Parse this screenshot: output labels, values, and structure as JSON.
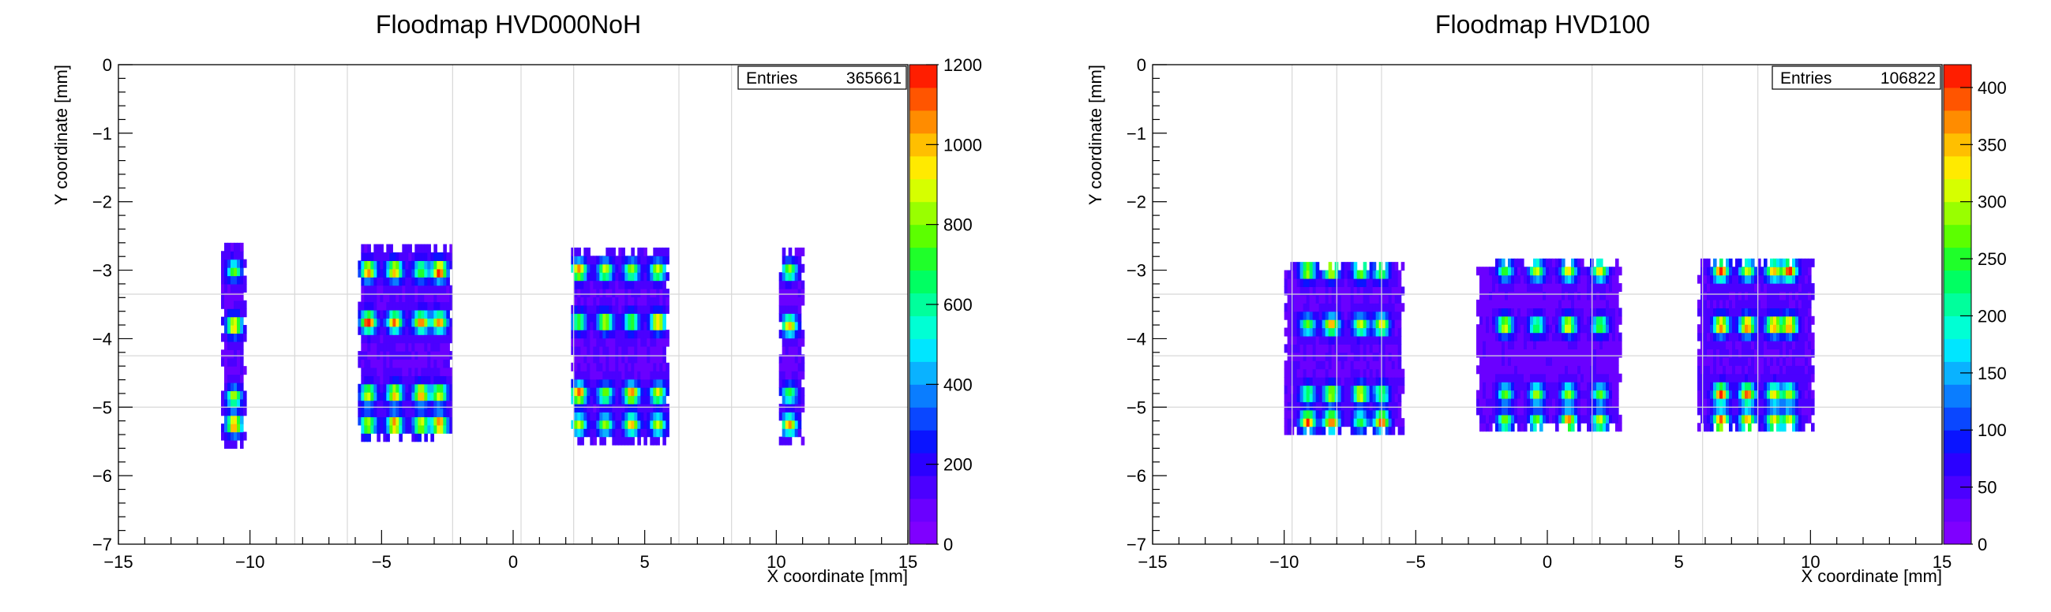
{
  "chart_data": [
    {
      "type": "heatmap",
      "title": "Floodmap HVD000NoH",
      "xlabel": "X coordinate [mm]",
      "ylabel": "Y coordinate [mm]",
      "xlim": [
        -15,
        15
      ],
      "ylim": [
        -7,
        0
      ],
      "x_ticks": [
        "−15",
        "−10",
        "−5",
        "0",
        "5",
        "10",
        "15"
      ],
      "y_ticks": [
        "0",
        "−1",
        "−2",
        "−3",
        "−4",
        "−5",
        "−6",
        "−7"
      ],
      "stats": {
        "label": "Entries",
        "value": "365661"
      },
      "zlim": [
        0,
        1200
      ],
      "z_ticks": [
        "0",
        "200",
        "400",
        "600",
        "800",
        "1000",
        "1200"
      ],
      "grid_x": [
        -8.3,
        -6.3,
        -2.3,
        0.3,
        2.3,
        6.3,
        8.3
      ],
      "grid_y": [
        -3.35,
        -4.25,
        -5.0
      ],
      "modules": [
        {
          "x": [
            -11.1,
            -10.1
          ],
          "y": [
            -5.6,
            -2.65
          ],
          "spots_x": [
            -10.6
          ],
          "spots_y": [
            -3.0,
            -3.8,
            -4.85,
            -5.25
          ],
          "peak": 1150
        },
        {
          "x": [
            -5.9,
            -2.3
          ],
          "y": [
            -5.5,
            -2.65
          ],
          "spots_x": [
            -5.5,
            -4.5,
            -3.5,
            -2.8
          ],
          "spots_y": [
            -3.0,
            -3.75,
            -4.8,
            -5.25
          ],
          "peak": 1200
        },
        {
          "x": [
            2.2,
            5.9
          ],
          "y": [
            -5.55,
            -2.65
          ],
          "spots_x": [
            2.5,
            3.5,
            4.5,
            5.5
          ],
          "spots_y": [
            -3.0,
            -3.75,
            -4.8,
            -5.25
          ],
          "peak": 1150
        },
        {
          "x": [
            10.1,
            11.1
          ],
          "y": [
            -5.55,
            -2.65
          ],
          "spots_x": [
            10.5
          ],
          "spots_y": [
            -3.0,
            -3.8,
            -4.8,
            -5.25
          ],
          "peak": 1100
        }
      ]
    },
    {
      "type": "heatmap",
      "title": "Floodmap HVD100",
      "xlabel": "X coordinate [mm]",
      "ylabel": "Y coordinate [mm]",
      "xlim": [
        -15,
        15
      ],
      "ylim": [
        -7,
        0
      ],
      "x_ticks": [
        "−15",
        "−10",
        "−5",
        "0",
        "5",
        "10",
        "15"
      ],
      "y_ticks": [
        "0",
        "−1",
        "−2",
        "−3",
        "−4",
        "−5",
        "−6",
        "−7"
      ],
      "stats": {
        "label": "Entries",
        "value": "106822"
      },
      "zlim": [
        0,
        420
      ],
      "z_ticks": [
        "0",
        "50",
        "100",
        "150",
        "200",
        "250",
        "300",
        "350",
        "400"
      ],
      "grid_x": [
        -9.7,
        -8.0,
        -6.3,
        1.7,
        5.9,
        8.0
      ],
      "grid_y": [
        -3.35,
        -4.25,
        -5.0
      ],
      "modules": [
        {
          "x": [
            -10.0,
            -5.5
          ],
          "y": [
            -5.4,
            -2.85
          ],
          "spots_x": [
            -9.1,
            -8.2,
            -7.1,
            -6.3
          ],
          "spots_y": [
            -3.0,
            -3.8,
            -4.8,
            -5.2
          ],
          "peak": 400
        },
        {
          "x": [
            -2.7,
            2.8
          ],
          "y": [
            -5.35,
            -2.85
          ],
          "spots_x": [
            -1.6,
            -0.4,
            0.8,
            2.0
          ],
          "spots_y": [
            -3.0,
            -3.8,
            -4.8,
            -5.2
          ],
          "peak": 380
        },
        {
          "x": [
            5.7,
            10.1
          ],
          "y": [
            -5.35,
            -2.85
          ],
          "spots_x": [
            6.6,
            7.6,
            8.6,
            9.2
          ],
          "spots_y": [
            -3.0,
            -3.8,
            -4.8,
            -5.2
          ],
          "peak": 420
        }
      ]
    }
  ]
}
